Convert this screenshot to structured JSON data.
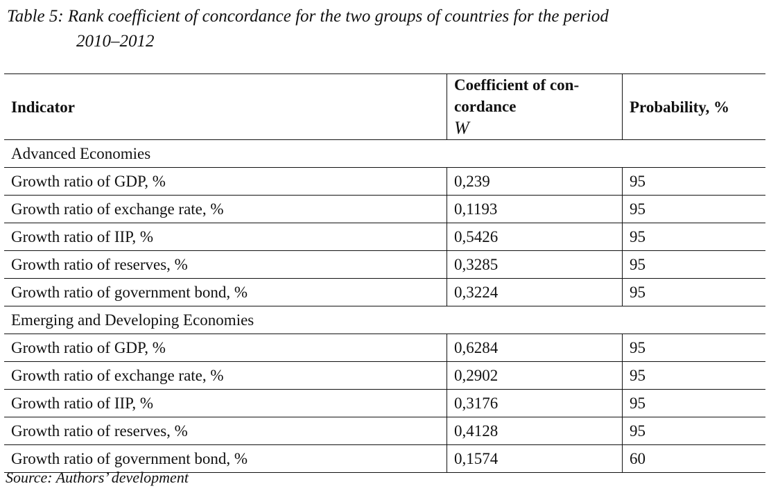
{
  "caption": {
    "line1": "Table 5: Rank coefficient of concordance for the two groups of countries for the period",
    "line2": "2010–2012"
  },
  "headers": {
    "indicator": "Indicator",
    "coefficient": "Coefficient of con-cordance",
    "coefficient_symbol": "W",
    "probability": "Probability, %"
  },
  "groups": [
    {
      "name": "Advanced Economies",
      "rows": [
        {
          "indicator": "Growth ratio of GDP, %",
          "w": "0,239",
          "p": "95"
        },
        {
          "indicator": "Growth ratio of exchange rate, %",
          "w": "0,1193",
          "p": "95"
        },
        {
          "indicator": "Growth ratio of IIP, %",
          "w": "0,5426",
          "p": "95"
        },
        {
          "indicator": "Growth ratio of reserves, %",
          "w": "0,3285",
          "p": "95"
        },
        {
          "indicator": "Growth ratio of government bond, %",
          "w": "0,3224",
          "p": "95"
        }
      ]
    },
    {
      "name": "Emerging and Developing Economies",
      "rows": [
        {
          "indicator": "Growth ratio of GDP, %",
          "w": "0,6284",
          "p": "95"
        },
        {
          "indicator": "Growth ratio of exchange rate, %",
          "w": "0,2902",
          "p": "95"
        },
        {
          "indicator": "Growth ratio of IIP, %",
          "w": "0,3176",
          "p": "95"
        },
        {
          "indicator": "Growth ratio of reserves, %",
          "w": "0,4128",
          "p": "95"
        },
        {
          "indicator": "Growth ratio of government bond, %",
          "w": "0,1574",
          "p": "60"
        }
      ]
    }
  ],
  "source": "Source: Authors’ development"
}
